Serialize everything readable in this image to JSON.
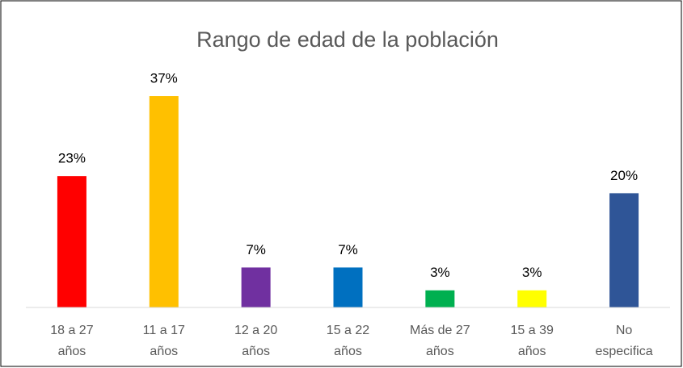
{
  "chart_data": {
    "type": "bar",
    "title": "Rango de edad de la población",
    "categories": [
      "18 a 27 años",
      "11 a 17 años",
      "12 a 20 años",
      "15 a 22 años",
      "Más de 27 años",
      "15 a 39 años",
      "No especifica"
    ],
    "values": [
      23,
      37,
      7,
      7,
      3,
      3,
      20
    ],
    "value_labels": [
      "23%",
      "37%",
      "7%",
      "7%",
      "3%",
      "3%",
      "20%"
    ],
    "colors": [
      "#ff0000",
      "#ffc000",
      "#7030a0",
      "#0070c0",
      "#00b050",
      "#ffff00",
      "#2f5597"
    ],
    "grid": false
  }
}
